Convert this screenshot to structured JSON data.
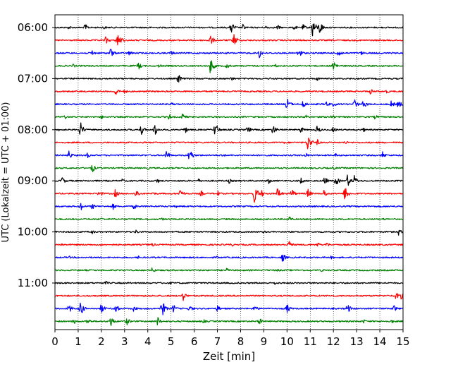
{
  "chart_data": {
    "type": "line",
    "title": "",
    "xlabel": "Zeit  [min]",
    "ylabel": "UTC (Lokalzeit = UTC + 01:00)",
    "xlim": [
      0,
      15
    ],
    "x_ticks": [
      "0",
      "1",
      "2",
      "3",
      "4",
      "5",
      "6",
      "7",
      "8",
      "9",
      "10",
      "11",
      "12",
      "13",
      "14",
      "15"
    ],
    "y_tick_labels": [
      "06:00",
      "07:00",
      "08:00",
      "09:00",
      "10:00",
      "11:00"
    ],
    "grid": "vertical dotted lines at every minute",
    "trace_interval_minutes": 15,
    "trace_colors": [
      "#000000",
      "#ff0000",
      "#0000ff",
      "#008000"
    ],
    "traces": [
      {
        "start": "06:00",
        "events": [
          [
            0.6,
            0.2
          ],
          [
            1.3,
            0.35
          ],
          [
            2.1,
            0.2
          ],
          [
            4.0,
            0.15
          ],
          [
            7.6,
            0.6
          ],
          [
            8.1,
            0.3
          ],
          [
            9.1,
            0.2
          ],
          [
            9.6,
            0.25
          ],
          [
            10.3,
            0.25
          ],
          [
            10.7,
            0.3
          ],
          [
            11.1,
            0.9
          ],
          [
            11.4,
            0.7
          ]
        ]
      },
      {
        "start": "06:15",
        "events": [
          [
            2.2,
            0.4
          ],
          [
            2.7,
            0.85
          ],
          [
            6.7,
            0.5
          ],
          [
            7.7,
            0.7
          ],
          [
            2.9,
            0.2
          ]
        ]
      },
      {
        "start": "06:30",
        "events": [
          [
            1.6,
            0.3
          ],
          [
            2.4,
            0.5
          ],
          [
            3.2,
            0.25
          ],
          [
            5.0,
            0.25
          ],
          [
            8.8,
            0.5
          ],
          [
            10.5,
            0.6
          ],
          [
            12.2,
            0.5
          ],
          [
            13.2,
            0.2
          ]
        ]
      },
      {
        "start": "06:45",
        "events": [
          [
            0.8,
            0.2
          ],
          [
            3.6,
            0.35
          ],
          [
            4.5,
            0.2
          ],
          [
            6.7,
            0.8
          ],
          [
            7.4,
            0.3
          ],
          [
            9.5,
            0.2
          ],
          [
            12.0,
            0.6
          ]
        ]
      },
      {
        "start": "07:00",
        "events": [
          [
            5.3,
            0.5
          ],
          [
            7.6,
            0.25
          ],
          [
            9.3,
            0.15
          ],
          [
            11.3,
            0.2
          ]
        ]
      },
      {
        "start": "07:15",
        "events": [
          [
            2.6,
            0.45
          ],
          [
            3.0,
            0.2
          ],
          [
            13.6,
            0.3
          ],
          [
            14.3,
            0.2
          ]
        ]
      },
      {
        "start": "07:30",
        "events": [
          [
            5.0,
            0.2
          ],
          [
            10.0,
            0.6
          ],
          [
            10.7,
            0.4
          ],
          [
            11.7,
            0.3
          ],
          [
            12.0,
            0.25
          ],
          [
            12.9,
            0.5
          ],
          [
            13.3,
            0.45
          ],
          [
            14.5,
            0.35
          ],
          [
            14.8,
            0.4
          ]
        ]
      },
      {
        "start": "07:45",
        "events": [
          [
            0.4,
            0.25
          ],
          [
            2.0,
            0.2
          ],
          [
            4.9,
            0.3
          ],
          [
            5.5,
            0.35
          ],
          [
            10.8,
            0.25
          ],
          [
            11.9,
            0.3
          ],
          [
            13.8,
            0.25
          ]
        ]
      },
      {
        "start": "08:00",
        "events": [
          [
            0.2,
            0.2
          ],
          [
            1.1,
            0.7
          ],
          [
            3.7,
            0.55
          ],
          [
            4.3,
            0.6
          ],
          [
            5.6,
            0.35
          ],
          [
            6.9,
            0.7
          ],
          [
            8.3,
            0.4
          ],
          [
            9.4,
            0.5
          ],
          [
            10.6,
            0.3
          ],
          [
            11.3,
            0.4
          ],
          [
            12.0,
            0.3
          ],
          [
            13.3,
            0.2
          ]
        ]
      },
      {
        "start": "08:15",
        "events": [
          [
            9.9,
            0.15
          ],
          [
            10.9,
            0.85
          ],
          [
            11.3,
            0.3
          ],
          [
            12.5,
            0.2
          ]
        ]
      },
      {
        "start": "08:30",
        "events": [
          [
            0.6,
            0.45
          ],
          [
            1.4,
            0.25
          ],
          [
            4.8,
            0.5
          ],
          [
            5.8,
            0.7
          ],
          [
            7.2,
            0.2
          ],
          [
            10.8,
            0.25
          ],
          [
            12.1,
            0.2
          ],
          [
            14.1,
            0.4
          ]
        ]
      },
      {
        "start": "08:45",
        "events": [
          [
            1.6,
            0.45
          ],
          [
            4.0,
            0.15
          ],
          [
            12.0,
            0.2
          ]
        ]
      },
      {
        "start": "09:00",
        "events": [
          [
            0.3,
            0.4
          ],
          [
            2.9,
            0.2
          ],
          [
            4.4,
            0.25
          ],
          [
            6.2,
            0.2
          ],
          [
            7.5,
            0.25
          ],
          [
            9.2,
            0.3
          ],
          [
            10.6,
            0.3
          ],
          [
            11.6,
            0.45
          ],
          [
            12.1,
            0.5
          ],
          [
            12.6,
            0.6
          ],
          [
            12.9,
            0.5
          ]
        ]
      },
      {
        "start": "09:15",
        "events": [
          [
            1.9,
            0.4
          ],
          [
            2.6,
            0.4
          ],
          [
            3.5,
            0.45
          ],
          [
            4.2,
            0.2
          ],
          [
            5.4,
            0.5
          ],
          [
            6.3,
            0.3
          ],
          [
            7.0,
            0.3
          ],
          [
            8.6,
            0.9
          ],
          [
            8.9,
            0.35
          ],
          [
            9.6,
            0.6
          ],
          [
            10.2,
            0.5
          ],
          [
            10.9,
            0.45
          ],
          [
            11.6,
            0.4
          ],
          [
            12.5,
            0.8
          ]
        ]
      },
      {
        "start": "09:30",
        "events": [
          [
            1.1,
            0.45
          ],
          [
            1.6,
            0.3
          ],
          [
            2.5,
            0.3
          ],
          [
            3.4,
            0.3
          ],
          [
            5.2,
            0.15
          ]
        ]
      },
      {
        "start": "09:45",
        "events": [
          [
            2.0,
            0.15
          ],
          [
            4.6,
            0.15
          ],
          [
            10.1,
            0.3
          ],
          [
            12.4,
            0.15
          ],
          [
            14.2,
            0.15
          ]
        ]
      },
      {
        "start": "10:00",
        "events": [
          [
            1.6,
            0.2
          ],
          [
            3.5,
            0.2
          ],
          [
            6.1,
            0.15
          ],
          [
            9.0,
            0.15
          ],
          [
            14.8,
            0.35
          ]
        ]
      },
      {
        "start": "10:15",
        "events": [
          [
            0.3,
            0.15
          ],
          [
            2.0,
            0.15
          ],
          [
            4.2,
            0.2
          ],
          [
            7.6,
            0.2
          ],
          [
            10.1,
            0.4
          ],
          [
            11.3,
            0.25
          ],
          [
            11.7,
            0.25
          ]
        ]
      },
      {
        "start": "10:30",
        "events": [
          [
            0.6,
            0.15
          ],
          [
            3.6,
            0.15
          ],
          [
            7.0,
            0.15
          ],
          [
            9.8,
            0.45
          ],
          [
            11.9,
            0.15
          ]
        ]
      },
      {
        "start": "10:45",
        "events": [
          [
            4.2,
            0.3
          ],
          [
            7.4,
            0.2
          ],
          [
            9.6,
            0.15
          ],
          [
            11.5,
            0.15
          ]
        ]
      },
      {
        "start": "11:00",
        "events": [
          [
            2.2,
            0.2
          ],
          [
            5.0,
            0.15
          ],
          [
            9.5,
            0.2
          ]
        ]
      },
      {
        "start": "11:15",
        "events": [
          [
            5.5,
            0.55
          ],
          [
            14.7,
            0.35
          ],
          [
            14.9,
            0.35
          ]
        ]
      },
      {
        "start": "11:30",
        "events": [
          [
            0.6,
            0.45
          ],
          [
            1.1,
            0.7
          ],
          [
            2.0,
            0.5
          ],
          [
            2.6,
            0.5
          ],
          [
            3.4,
            0.3
          ],
          [
            4.6,
            0.9
          ],
          [
            5.1,
            0.4
          ],
          [
            5.8,
            0.35
          ],
          [
            7.0,
            0.3
          ],
          [
            8.6,
            0.35
          ],
          [
            10.0,
            0.45
          ],
          [
            12.6,
            0.5
          ],
          [
            14.6,
            0.35
          ]
        ]
      },
      {
        "start": "11:45",
        "events": [
          [
            0.8,
            0.3
          ],
          [
            1.4,
            0.35
          ],
          [
            2.4,
            0.55
          ],
          [
            3.1,
            0.35
          ],
          [
            4.4,
            0.5
          ],
          [
            6.4,
            0.2
          ],
          [
            8.8,
            0.35
          ],
          [
            13.3,
            0.2
          ],
          [
            14.5,
            0.2
          ]
        ]
      }
    ]
  }
}
